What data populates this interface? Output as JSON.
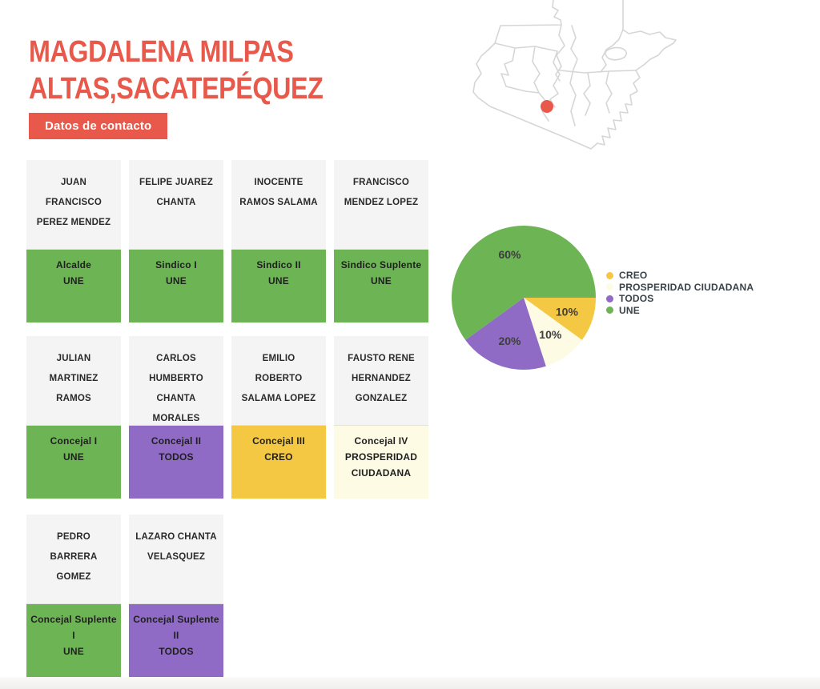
{
  "page": {
    "title": "MAGDALENA MILPAS ALTAS,SACATEPÉQUEZ",
    "contact_button": "Datos de contacto"
  },
  "colors": {
    "accent": "#E8594B",
    "card_background": "#F4F4F4",
    "map_line": "#D6D6D6",
    "parties": {
      "UNE": "#6DB454",
      "TODOS": "#8F6BC5",
      "CREO": "#F5C843",
      "PROSPERIDAD CIUDADANA": "#FDFBE3"
    }
  },
  "officials": [
    {
      "name": "JUAN FRANCISCO PEREZ MENDEZ",
      "position": "Alcalde",
      "party": "UNE"
    },
    {
      "name": "FELIPE JUAREZ CHANTA",
      "position": "Sindico I",
      "party": "UNE"
    },
    {
      "name": "INOCENTE RAMOS SALAMA",
      "position": "Sindico II",
      "party": "UNE"
    },
    {
      "name": "FRANCISCO MENDEZ LOPEZ",
      "position": "Sindico Suplente",
      "party": "UNE"
    },
    {
      "name": "JULIAN MARTINEZ RAMOS",
      "position": "Concejal I",
      "party": "UNE"
    },
    {
      "name": "CARLOS HUMBERTO CHANTA MORALES",
      "position": "Concejal II",
      "party": "TODOS"
    },
    {
      "name": "EMILIO ROBERTO SALAMA LOPEZ",
      "position": "Concejal III",
      "party": "CREO"
    },
    {
      "name": "FAUSTO RENE HERNANDEZ GONZALEZ",
      "position": "Concejal IV",
      "party": "PROSPERIDAD CIUDADANA"
    },
    {
      "name": "PEDRO BARRERA GOMEZ",
      "position": "Concejal Suplente I",
      "party": "UNE"
    },
    {
      "name": "LAZARO CHANTA VELASQUEZ",
      "position": "Concejal Suplente II",
      "party": "TODOS"
    }
  ],
  "chart_data": {
    "type": "pie",
    "labels": [
      "CREO",
      "PROSPERIDAD CIUDADANA",
      "TODOS",
      "UNE"
    ],
    "values": [
      10,
      10,
      20,
      60
    ],
    "percent_labels": [
      "10%",
      "10%",
      "20%",
      "60%"
    ],
    "colors": [
      "#F5C843",
      "#FDFBE3",
      "#8F6BC5",
      "#6DB454"
    ],
    "start_angle_deg": 0,
    "direction": "clockwise",
    "legend_position": "right",
    "title": ""
  }
}
